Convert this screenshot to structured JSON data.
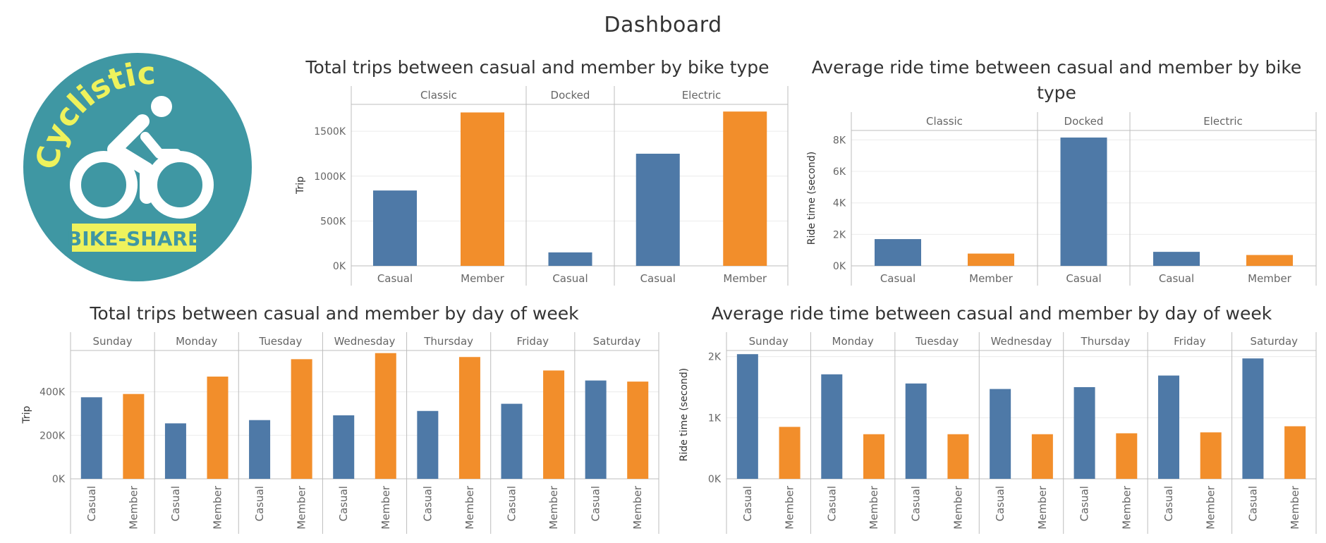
{
  "dashboard": {
    "title": "Dashboard"
  },
  "logo": {
    "brand": "Cyclistic",
    "tagline": "BIKE-SHARE",
    "colors": {
      "circle": "#3f97a3",
      "text": "#eef25c",
      "rider": "#ffffff"
    },
    "icon": "cyclist-icon"
  },
  "colors": {
    "casual": "#4e79a7",
    "member": "#f28e2b",
    "grid": "#ececec",
    "axis": "#bdbdbd"
  },
  "chart_data": [
    {
      "id": "trips-by-bike",
      "type": "bar",
      "title": "Total trips between casual and member by bike type",
      "ylabel": "Trip",
      "ylim": [
        0,
        1800000
      ],
      "yticks": [
        0,
        500000,
        1000000,
        1500000
      ],
      "yticklabels": [
        "0K",
        "500K",
        "1000K",
        "1500K"
      ],
      "grid": true,
      "groups": [
        {
          "name": "Classic",
          "bars": [
            {
              "label": "Casual",
              "value": 840000
            },
            {
              "label": "Member",
              "value": 1710000
            }
          ]
        },
        {
          "name": "Docked",
          "bars": [
            {
              "label": "Casual",
              "value": 150000
            }
          ]
        },
        {
          "name": "Electric",
          "bars": [
            {
              "label": "Casual",
              "value": 1250000
            },
            {
              "label": "Member",
              "value": 1720000
            }
          ]
        }
      ]
    },
    {
      "id": "ride-time-by-bike",
      "type": "bar",
      "title": "Average ride time between casual and member by bike type",
      "ylabel": "Ride time (second)",
      "ylim": [
        0,
        8600
      ],
      "yticks": [
        0,
        2000,
        4000,
        6000,
        8000
      ],
      "yticklabels": [
        "0K",
        "2K",
        "4K",
        "6K",
        "8K"
      ],
      "grid": true,
      "groups": [
        {
          "name": "Classic",
          "bars": [
            {
              "label": "Casual",
              "value": 1700
            },
            {
              "label": "Member",
              "value": 780
            }
          ]
        },
        {
          "name": "Docked",
          "bars": [
            {
              "label": "Casual",
              "value": 8150
            }
          ]
        },
        {
          "name": "Electric",
          "bars": [
            {
              "label": "Casual",
              "value": 890
            },
            {
              "label": "Member",
              "value": 690
            }
          ]
        }
      ]
    },
    {
      "id": "trips-by-day",
      "type": "bar",
      "title": "Total trips between casual and member by day of week",
      "ylabel": "Trip",
      "ylim": [
        0,
        590000
      ],
      "yticks": [
        0,
        200000,
        400000
      ],
      "yticklabels": [
        "0K",
        "200K",
        "400K"
      ],
      "grid": true,
      "groups": [
        {
          "name": "Sunday",
          "bars": [
            {
              "label": "Casual",
              "value": 375000
            },
            {
              "label": "Member",
              "value": 390000
            }
          ]
        },
        {
          "name": "Monday",
          "bars": [
            {
              "label": "Casual",
              "value": 255000
            },
            {
              "label": "Member",
              "value": 470000
            }
          ]
        },
        {
          "name": "Tuesday",
          "bars": [
            {
              "label": "Casual",
              "value": 270000
            },
            {
              "label": "Member",
              "value": 550000
            }
          ]
        },
        {
          "name": "Wednesday",
          "bars": [
            {
              "label": "Casual",
              "value": 292000
            },
            {
              "label": "Member",
              "value": 578000
            }
          ]
        },
        {
          "name": "Thursday",
          "bars": [
            {
              "label": "Casual",
              "value": 312000
            },
            {
              "label": "Member",
              "value": 560000
            }
          ]
        },
        {
          "name": "Friday",
          "bars": [
            {
              "label": "Casual",
              "value": 345000
            },
            {
              "label": "Member",
              "value": 498000
            }
          ]
        },
        {
          "name": "Saturday",
          "bars": [
            {
              "label": "Casual",
              "value": 452000
            },
            {
              "label": "Member",
              "value": 447000
            }
          ]
        }
      ]
    },
    {
      "id": "ride-time-by-day",
      "type": "bar",
      "title": "Average ride time between casual and member by day of week",
      "ylabel": "Ride time (second)",
      "ylim": [
        0,
        2100
      ],
      "yticks": [
        0,
        1000,
        2000
      ],
      "yticklabels": [
        "0K",
        "1K",
        "2K"
      ],
      "grid": true,
      "groups": [
        {
          "name": "Sunday",
          "bars": [
            {
              "label": "Casual",
              "value": 2040
            },
            {
              "label": "Member",
              "value": 850
            }
          ]
        },
        {
          "name": "Monday",
          "bars": [
            {
              "label": "Casual",
              "value": 1710
            },
            {
              "label": "Member",
              "value": 730
            }
          ]
        },
        {
          "name": "Tuesday",
          "bars": [
            {
              "label": "Casual",
              "value": 1560
            },
            {
              "label": "Member",
              "value": 730
            }
          ]
        },
        {
          "name": "Wednesday",
          "bars": [
            {
              "label": "Casual",
              "value": 1470
            },
            {
              "label": "Member",
              "value": 730
            }
          ]
        },
        {
          "name": "Thursday",
          "bars": [
            {
              "label": "Casual",
              "value": 1500
            },
            {
              "label": "Member",
              "value": 745
            }
          ]
        },
        {
          "name": "Friday",
          "bars": [
            {
              "label": "Casual",
              "value": 1690
            },
            {
              "label": "Member",
              "value": 760
            }
          ]
        },
        {
          "name": "Saturday",
          "bars": [
            {
              "label": "Casual",
              "value": 1970
            },
            {
              "label": "Member",
              "value": 860
            }
          ]
        }
      ]
    }
  ]
}
